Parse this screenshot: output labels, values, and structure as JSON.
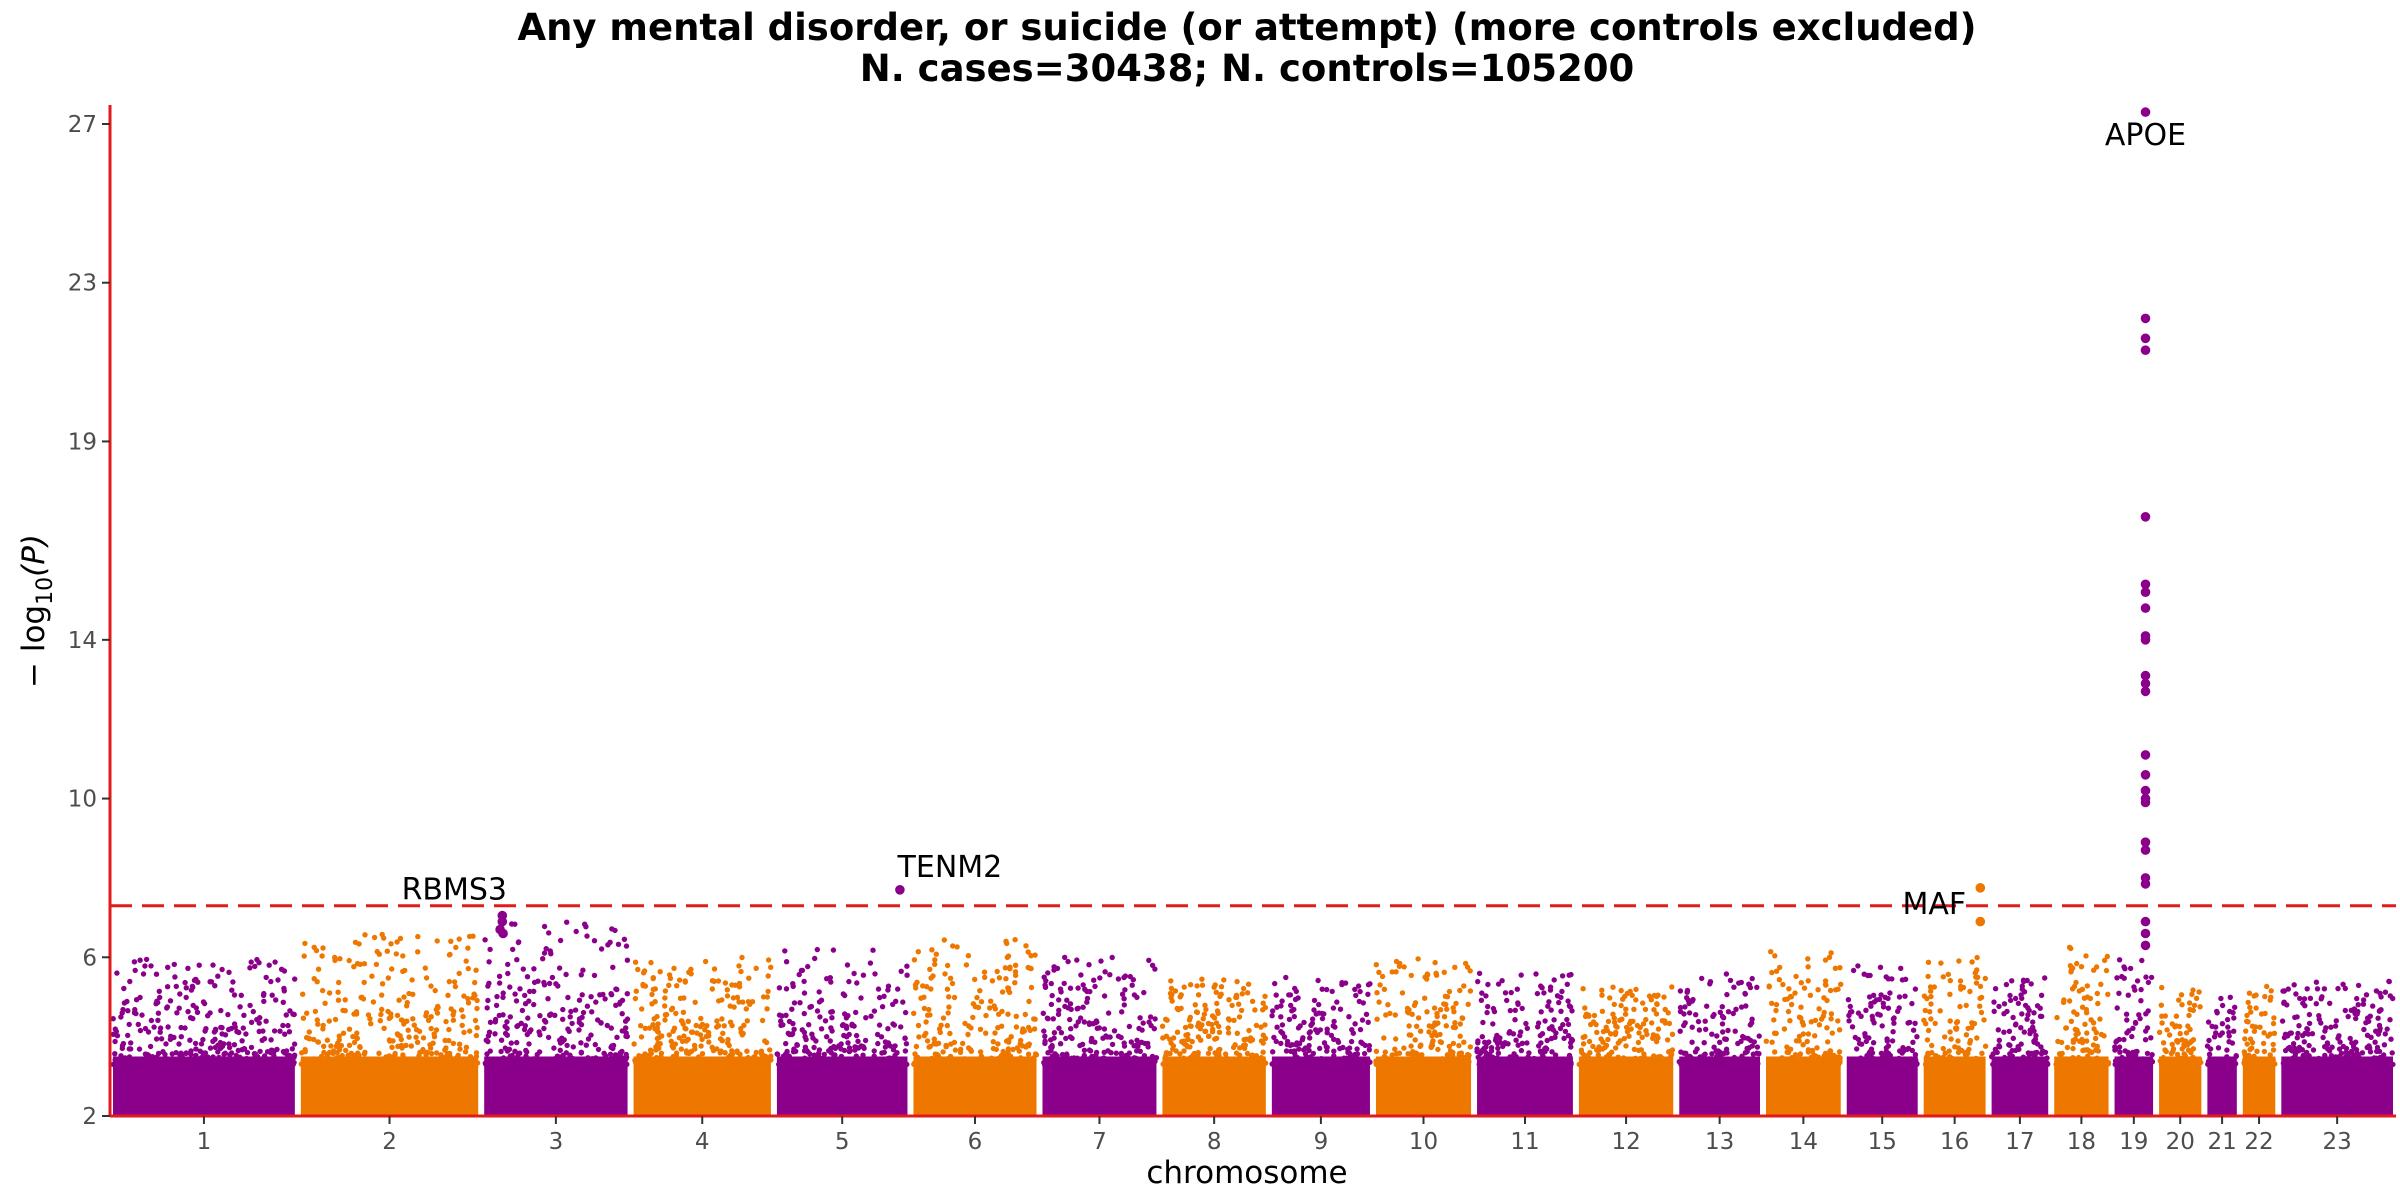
{
  "chart_data": {
    "type": "scatter",
    "subtype": "manhattan",
    "title": "Any mental disorder, or suicide (or attempt) (more controls excluded)",
    "subtitle": "N. cases=30438; N. controls=105200",
    "xlabel": "chromosome",
    "ylabel_prefix": "− log",
    "ylabel_sub": "10",
    "ylabel_suffix": "(P)",
    "ylim": [
      2,
      27.3
    ],
    "yticks": [
      2,
      6,
      10,
      14,
      19,
      23,
      27
    ],
    "grid": false,
    "legend": "none",
    "significance_threshold": 7.3,
    "colors": {
      "odd": "#8B008B",
      "even": "#EE7700",
      "axis": "#E31A1C",
      "threshold": "#E31A1C",
      "tick_text": "#4d4d4d"
    },
    "chromosomes": [
      {
        "label": "1",
        "start": 0,
        "end": 249
      },
      {
        "label": "2",
        "start": 249,
        "end": 492
      },
      {
        "label": "3",
        "start": 492,
        "end": 690
      },
      {
        "label": "4",
        "start": 690,
        "end": 880
      },
      {
        "label": "5",
        "start": 880,
        "end": 1061
      },
      {
        "label": "6",
        "start": 1061,
        "end": 1232
      },
      {
        "label": "7",
        "start": 1232,
        "end": 1391
      },
      {
        "label": "8",
        "start": 1391,
        "end": 1536
      },
      {
        "label": "9",
        "start": 1536,
        "end": 1674
      },
      {
        "label": "10",
        "start": 1674,
        "end": 1808
      },
      {
        "label": "11",
        "start": 1808,
        "end": 1943
      },
      {
        "label": "12",
        "start": 1943,
        "end": 2076
      },
      {
        "label": "13",
        "start": 2076,
        "end": 2191
      },
      {
        "label": "14",
        "start": 2191,
        "end": 2298
      },
      {
        "label": "15",
        "start": 2298,
        "end": 2400
      },
      {
        "label": "16",
        "start": 2400,
        "end": 2490
      },
      {
        "label": "17",
        "start": 2490,
        "end": 2573
      },
      {
        "label": "18",
        "start": 2573,
        "end": 2653
      },
      {
        "label": "19",
        "start": 2653,
        "end": 2712
      },
      {
        "label": "20",
        "start": 2712,
        "end": 2776
      },
      {
        "label": "21",
        "start": 2776,
        "end": 2823
      },
      {
        "label": "22",
        "start": 2823,
        "end": 2874
      },
      {
        "label": "23",
        "start": 2874,
        "end": 3030
      }
    ],
    "background_max_by_chromosome": [
      6.0,
      6.6,
      6.9,
      6.0,
      6.2,
      6.5,
      6.0,
      5.5,
      5.5,
      6.0,
      5.6,
      5.3,
      5.6,
      6.2,
      5.8,
      6.3,
      5.5,
      6.3,
      6.0,
      5.3,
      5.0,
      5.3,
      5.4
    ],
    "highlighted_points": [
      {
        "chrom": "3",
        "pos": 28,
        "p": 7.05
      },
      {
        "chrom": "3",
        "pos": 28,
        "p": 6.9
      },
      {
        "chrom": "3",
        "pos": 29,
        "p": 6.6
      },
      {
        "chrom": "3",
        "pos": 25,
        "p": 6.7
      },
      {
        "chrom": "5",
        "pos": 167,
        "p": 7.7
      },
      {
        "chrom": "16",
        "pos": 79,
        "p": 7.75
      },
      {
        "chrom": "16",
        "pos": 79,
        "p": 6.9
      },
      {
        "chrom": "19",
        "pos": 45,
        "p": 27.3
      },
      {
        "chrom": "19",
        "pos": 45,
        "p": 22.1
      },
      {
        "chrom": "19",
        "pos": 45,
        "p": 21.6
      },
      {
        "chrom": "19",
        "pos": 45,
        "p": 21.3
      },
      {
        "chrom": "19",
        "pos": 45,
        "p": 17.1
      },
      {
        "chrom": "19",
        "pos": 45,
        "p": 15.4
      },
      {
        "chrom": "19",
        "pos": 45,
        "p": 15.2
      },
      {
        "chrom": "19",
        "pos": 45,
        "p": 14.8
      },
      {
        "chrom": "19",
        "pos": 45,
        "p": 14.1
      },
      {
        "chrom": "19",
        "pos": 45,
        "p": 14.0
      },
      {
        "chrom": "19",
        "pos": 45,
        "p": 13.1
      },
      {
        "chrom": "19",
        "pos": 45,
        "p": 12.9
      },
      {
        "chrom": "19",
        "pos": 45,
        "p": 12.7
      },
      {
        "chrom": "19",
        "pos": 45,
        "p": 11.1
      },
      {
        "chrom": "19",
        "pos": 45,
        "p": 10.6
      },
      {
        "chrom": "19",
        "pos": 45,
        "p": 10.2
      },
      {
        "chrom": "19",
        "pos": 45,
        "p": 10.0
      },
      {
        "chrom": "19",
        "pos": 45,
        "p": 9.9
      },
      {
        "chrom": "19",
        "pos": 45,
        "p": 8.9
      },
      {
        "chrom": "19",
        "pos": 45,
        "p": 8.7
      },
      {
        "chrom": "19",
        "pos": 45,
        "p": 8.0
      },
      {
        "chrom": "19",
        "pos": 45,
        "p": 7.85
      },
      {
        "chrom": "19",
        "pos": 45,
        "p": 6.9
      },
      {
        "chrom": "19",
        "pos": 45,
        "p": 6.6
      },
      {
        "chrom": "19",
        "pos": 45,
        "p": 6.3
      }
    ],
    "annotations": [
      {
        "label": "RBMS3",
        "chrom": "3",
        "pos": 28,
        "p": 7.05
      },
      {
        "label": "TENM2",
        "chrom": "5",
        "pos": 167,
        "p": 7.7
      },
      {
        "label": "MAF",
        "chrom": "16",
        "pos": 79,
        "p": 7.75
      },
      {
        "label": "APOE",
        "chrom": "19",
        "pos": 45,
        "p": 27.3
      }
    ]
  }
}
